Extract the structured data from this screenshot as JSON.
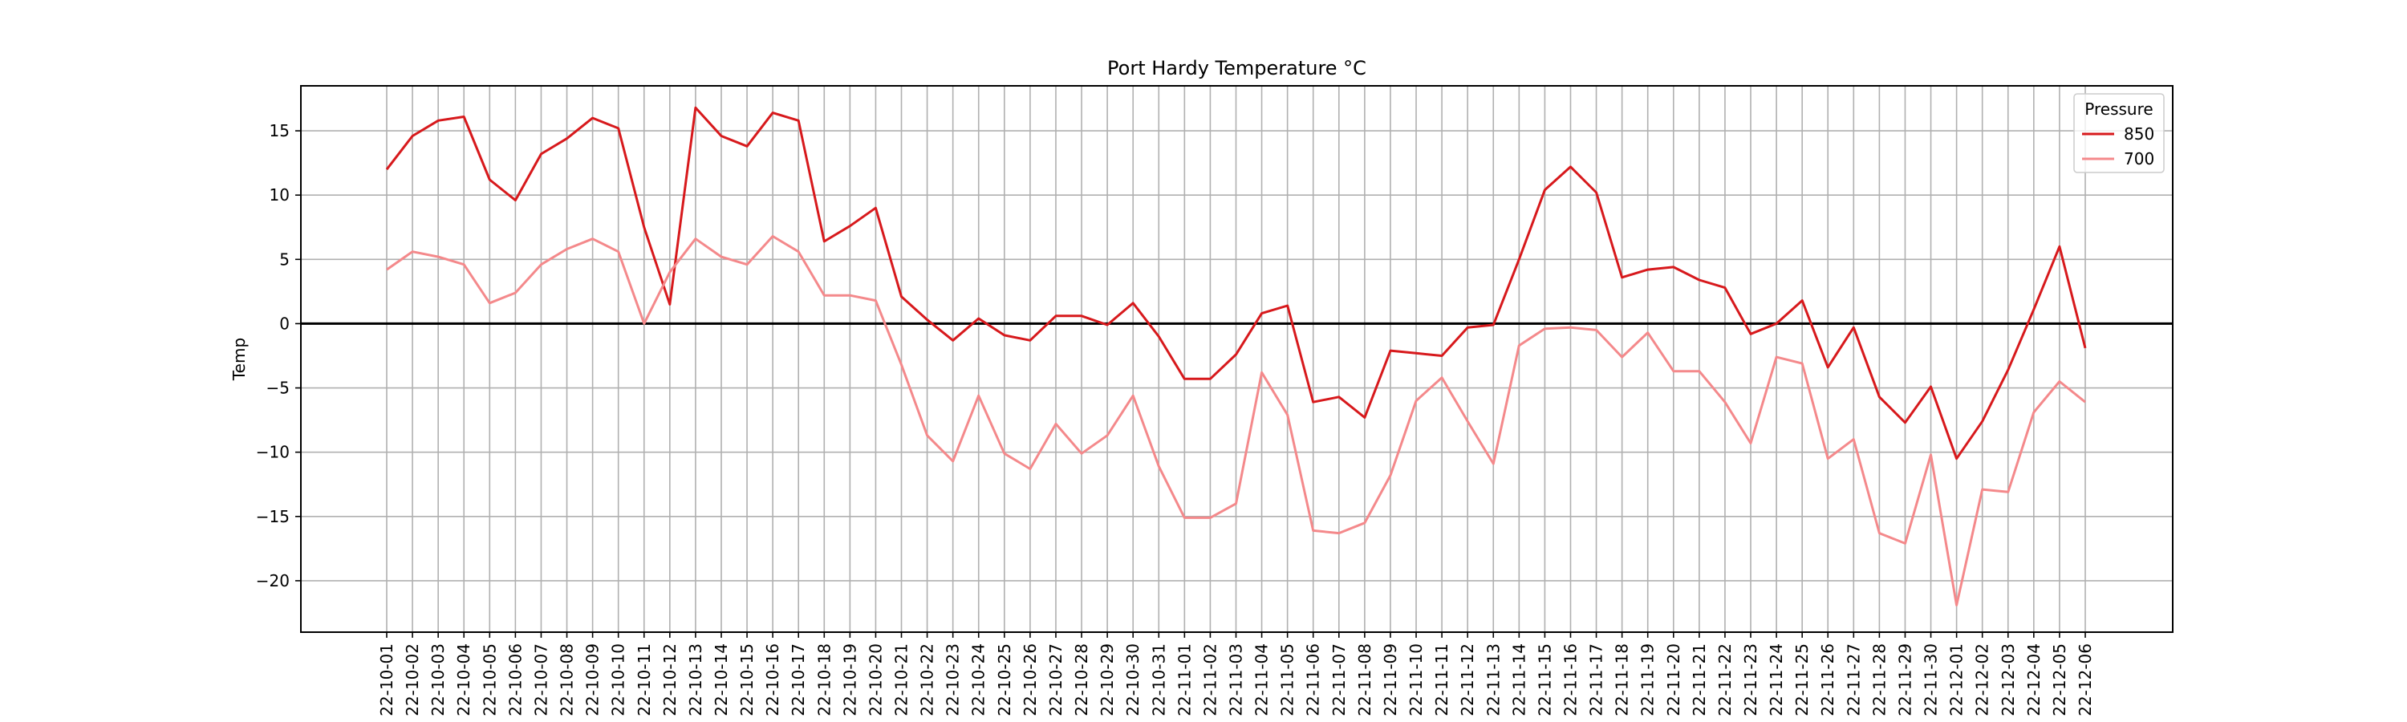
{
  "chart_data": {
    "type": "line",
    "title": "Port Hardy Temperature °C",
    "xlabel": "",
    "ylabel": "Temp",
    "ylim": [
      -24,
      18.5
    ],
    "yticks": [
      -20,
      -15,
      -10,
      -5,
      0,
      5,
      10,
      15
    ],
    "grid": true,
    "zero_line": true,
    "legend": {
      "title": "Pressure",
      "placement": "top-right"
    },
    "x": [
      "22-10-01",
      "22-10-02",
      "22-10-03",
      "22-10-04",
      "22-10-05",
      "22-10-06",
      "22-10-07",
      "22-10-08",
      "22-10-09",
      "22-10-10",
      "22-10-11",
      "22-10-12",
      "22-10-13",
      "22-10-14",
      "22-10-15",
      "22-10-16",
      "22-10-17",
      "22-10-18",
      "22-10-19",
      "22-10-20",
      "22-10-21",
      "22-10-22",
      "22-10-23",
      "22-10-24",
      "22-10-25",
      "22-10-26",
      "22-10-27",
      "22-10-28",
      "22-10-29",
      "22-10-30",
      "22-10-31",
      "22-11-01",
      "22-11-02",
      "22-11-03",
      "22-11-04",
      "22-11-05",
      "22-11-06",
      "22-11-07",
      "22-11-08",
      "22-11-09",
      "22-11-10",
      "22-11-11",
      "22-11-12",
      "22-11-13",
      "22-11-14",
      "22-11-15",
      "22-11-16",
      "22-11-17",
      "22-11-18",
      "22-11-19",
      "22-11-20",
      "22-11-21",
      "22-11-22",
      "22-11-23",
      "22-11-24",
      "22-11-25",
      "22-11-26",
      "22-11-27",
      "22-11-28",
      "22-11-29",
      "22-11-30",
      "22-12-01",
      "22-12-02",
      "22-12-03",
      "22-12-04",
      "22-12-05",
      "22-12-06"
    ],
    "series": [
      {
        "name": "850",
        "color": "#d7191c",
        "values": [
          12.0,
          14.6,
          15.8,
          16.1,
          11.2,
          9.6,
          13.2,
          14.4,
          16.0,
          15.2,
          7.5,
          1.5,
          16.8,
          14.6,
          13.8,
          16.4,
          15.8,
          6.4,
          7.6,
          9.0,
          2.1,
          0.3,
          -1.3,
          0.4,
          -0.9,
          -1.3,
          0.6,
          0.6,
          -0.1,
          1.6,
          -1.0,
          -4.3,
          -4.3,
          -2.4,
          0.8,
          1.4,
          -6.1,
          -5.7,
          -7.3,
          -2.1,
          -2.3,
          -2.5,
          -0.3,
          -0.1,
          5.0,
          10.4,
          12.2,
          10.2,
          3.6,
          4.2,
          4.4,
          3.4,
          2.8,
          -0.8,
          0.0,
          1.8,
          -3.4,
          -0.3,
          -5.7,
          -7.7,
          -4.9,
          -10.5,
          -7.6,
          -3.6,
          1.1,
          6.0,
          -1.9
        ]
      },
      {
        "name": "700",
        "color": "#f4898b",
        "values": [
          4.2,
          5.6,
          5.2,
          4.6,
          1.6,
          2.4,
          4.6,
          5.8,
          6.6,
          5.6,
          0.0,
          4.0,
          6.6,
          5.2,
          4.6,
          6.8,
          5.6,
          2.2,
          2.2,
          1.8,
          -3.2,
          -8.7,
          -10.7,
          -5.6,
          -10.1,
          -11.3,
          -7.8,
          -10.1,
          -8.7,
          -5.6,
          -11.1,
          -15.1,
          -15.1,
          -14.0,
          -3.8,
          -7.1,
          -16.1,
          -16.3,
          -15.5,
          -11.8,
          -6.0,
          -4.2,
          -7.6,
          -10.9,
          -1.7,
          -0.4,
          -0.3,
          -0.5,
          -2.6,
          -0.7,
          -3.7,
          -3.7,
          -6.1,
          -9.3,
          -2.6,
          -3.1,
          -10.5,
          -9.0,
          -16.3,
          -17.1,
          -10.2,
          -21.9,
          -12.9,
          -13.1,
          -6.9,
          -4.5,
          -6.1
        ]
      }
    ]
  }
}
